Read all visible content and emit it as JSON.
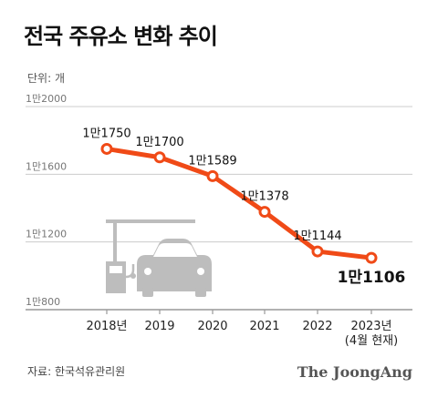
{
  "title": "전국 주유소 변화 추이",
  "unit_label": "단위: 개",
  "source": "자료: 한국석유관리원",
  "brand": "The JoongAng",
  "colors": {
    "line": "#f04a17",
    "grid": "#cccccc",
    "axis": "#999999",
    "illustration": "#bdbdbd"
  },
  "chart_data": {
    "type": "line",
    "title": "전국 주유소 변화 추이",
    "xlabel": "",
    "ylabel": "",
    "categories": [
      "2018년",
      "2019",
      "2020",
      "2021",
      "2022",
      "2023년"
    ],
    "category_sublabels": [
      "",
      "",
      "",
      "",
      "",
      "(4월 현재)"
    ],
    "ylim": [
      800,
      2000
    ],
    "yticks": [
      800,
      1200,
      1600,
      2000
    ],
    "ytick_labels": [
      "1만800",
      "1만1200",
      "1만1600",
      "1만2000"
    ],
    "grid": true,
    "legend": "none",
    "series": [
      {
        "values": [
          11750,
          11700,
          11589,
          11378,
          11144,
          11106
        ],
        "data_labels": [
          "1만1750",
          "1만1700",
          "1만1589",
          "1만1378",
          "1만1144",
          "1만1106"
        ]
      }
    ]
  }
}
